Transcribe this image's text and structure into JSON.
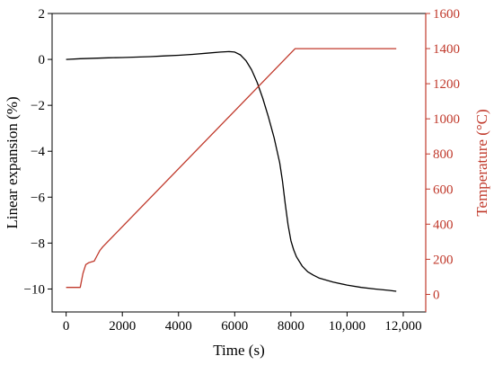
{
  "chart_data": {
    "type": "line",
    "xlabel": "Time (s)",
    "ylabel_left": "Linear expansion (%)",
    "ylabel_right": "Temperature (°C)",
    "xlim": [
      -500,
      12800
    ],
    "ylim_left": [
      -11,
      2
    ],
    "ylim_right": [
      -100,
      1600
    ],
    "x_ticks": [
      0,
      2000,
      4000,
      6000,
      8000,
      10000,
      12000
    ],
    "x_tick_labels": [
      "0",
      "2000",
      "4000",
      "6000",
      "8000",
      "10,000",
      "12,000"
    ],
    "y_left_ticks": [
      -10,
      -8,
      -6,
      -4,
      -2,
      0,
      2
    ],
    "y_left_tick_labels": [
      "−10",
      "−8",
      "−6",
      "−4",
      "−2",
      "0",
      "2"
    ],
    "y_right_ticks": [
      0,
      200,
      400,
      600,
      800,
      1000,
      1200,
      1400,
      1600
    ],
    "y_right_tick_labels": [
      "0",
      "200",
      "400",
      "600",
      "800",
      "1000",
      "1200",
      "1400",
      "1600"
    ],
    "colors": {
      "expansion": "#000000",
      "temperature": "#c0392b",
      "right_axis": "#c0392b"
    },
    "series": [
      {
        "axis": "left",
        "x": [
          0,
          500,
          1000,
          1500,
          2000,
          2500,
          3000,
          3500,
          4000,
          4500,
          5000,
          5500,
          5800,
          6000,
          6200,
          6400,
          6600,
          6800,
          7000,
          7200,
          7400,
          7600,
          7700,
          7800,
          7900,
          8000,
          8100,
          8200,
          8400,
          8600,
          8800,
          9000,
          9500,
          10000,
          10500,
          11000,
          11500,
          11750
        ],
        "values": [
          0.0,
          0.03,
          0.05,
          0.07,
          0.08,
          0.1,
          0.12,
          0.15,
          0.18,
          0.22,
          0.27,
          0.32,
          0.34,
          0.32,
          0.2,
          -0.05,
          -0.45,
          -1.0,
          -1.7,
          -2.5,
          -3.4,
          -4.5,
          -5.3,
          -6.3,
          -7.2,
          -7.9,
          -8.3,
          -8.6,
          -9.0,
          -9.25,
          -9.4,
          -9.52,
          -9.7,
          -9.83,
          -9.93,
          -10.0,
          -10.06,
          -10.1
        ]
      },
      {
        "axis": "right",
        "x": [
          0,
          500,
          600,
          700,
          800,
          1000,
          1100,
          1200,
          1300,
          8150,
          11750
        ],
        "values": [
          40,
          40,
          120,
          170,
          180,
          190,
          220,
          250,
          270,
          1400,
          1400
        ]
      }
    ]
  }
}
